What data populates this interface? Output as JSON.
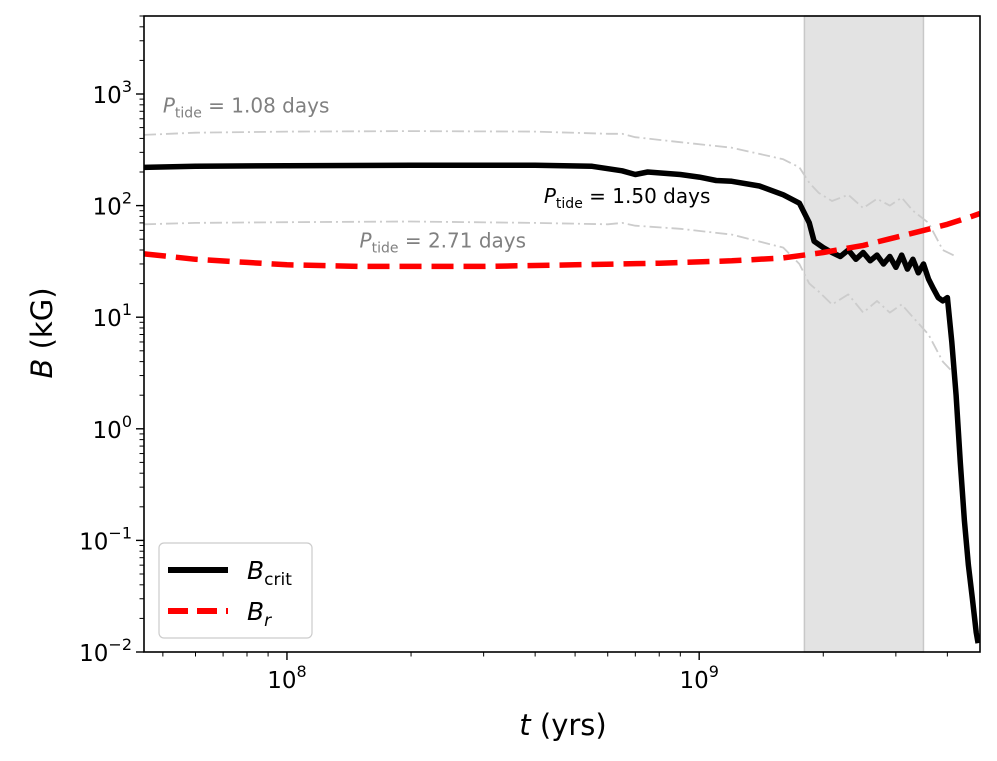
{
  "chart_data": {
    "type": "line",
    "xlabel_italic": "t",
    "xlabel_unit": " (yrs)",
    "ylabel_italic": "B",
    "ylabel_unit": " (kG)",
    "x_scale": "log",
    "y_scale": "log",
    "xlim": [
      45000000,
      4800000000
    ],
    "ylim": [
      0.01,
      5000
    ],
    "x_ticks": [
      {
        "value": 100000000,
        "base": "10",
        "exp": "8"
      },
      {
        "value": 1000000000,
        "base": "10",
        "exp": "9"
      }
    ],
    "y_ticks": [
      {
        "value": 0.01,
        "base": "10",
        "exp": "−2"
      },
      {
        "value": 0.1,
        "base": "10",
        "exp": "−1"
      },
      {
        "value": 1,
        "base": "10",
        "exp": "0"
      },
      {
        "value": 10,
        "base": "10",
        "exp": "1"
      },
      {
        "value": 100,
        "base": "10",
        "exp": "2"
      },
      {
        "value": 1000,
        "base": "10",
        "exp": "3"
      }
    ],
    "shaded_region": {
      "x": [
        1800000000,
        3500000000
      ],
      "color": "#e3e3e3"
    },
    "series": [
      {
        "key": "upper",
        "style": "dashdot",
        "color": "#cccccc",
        "x": [
          45000000,
          60000000,
          100000000,
          200000000,
          400000000,
          600000000,
          650000000,
          700000000,
          900000000,
          1200000000,
          1600000000,
          1750000000,
          1850000000,
          1950000000,
          2100000000,
          2300000000,
          2500000000,
          2700000000,
          2900000000,
          3100000000,
          3300000000,
          3600000000,
          3900000000,
          4200000000
        ],
        "y": [
          430,
          450,
          460,
          465,
          460,
          440,
          440,
          410,
          370,
          330,
          260,
          220,
          160,
          130,
          110,
          125,
          95,
          115,
          100,
          118,
          90,
          70,
          40,
          35
        ]
      },
      {
        "key": "lower",
        "style": "dashdot",
        "color": "#cccccc",
        "x": [
          45000000,
          60000000,
          100000000,
          200000000,
          400000000,
          600000000,
          650000000,
          700000000,
          900000000,
          1200000000,
          1600000000,
          1750000000,
          1850000000,
          1950000000,
          2100000000,
          2300000000,
          2500000000,
          2700000000,
          2900000000,
          3100000000,
          3300000000,
          3600000000,
          3900000000,
          4200000000
        ],
        "y": [
          68,
          70,
          71,
          72,
          70,
          68,
          70,
          66,
          62,
          55,
          42,
          30,
          20,
          17,
          13,
          16,
          11,
          14,
          11,
          13,
          10,
          7,
          4,
          3
        ]
      },
      {
        "key": "bcrit",
        "name": "B",
        "name_sub": "crit",
        "style": "solid",
        "color": "#000000",
        "x": [
          45000000,
          60000000,
          100000000,
          200000000,
          400000000,
          550000000,
          650000000,
          700000000,
          750000000,
          900000000,
          1000000000,
          1100000000,
          1200000000,
          1400000000,
          1600000000,
          1750000000,
          1850000000,
          1900000000,
          2000000000,
          2100000000,
          2200000000,
          2300000000,
          2400000000,
          2500000000,
          2600000000,
          2700000000,
          2800000000,
          2900000000,
          3000000000,
          3100000000,
          3200000000,
          3300000000,
          3400000000,
          3500000000,
          3600000000,
          3700000000,
          3800000000,
          3900000000,
          4000000000,
          4100000000,
          4200000000,
          4300000000,
          4400000000,
          4500000000,
          4600000000,
          4700000000,
          4750000000
        ],
        "y": [
          220,
          225,
          228,
          230,
          230,
          225,
          205,
          190,
          200,
          190,
          180,
          168,
          165,
          150,
          125,
          105,
          70,
          48,
          42,
          38,
          35,
          40,
          33,
          38,
          32,
          36,
          30,
          35,
          28,
          36,
          27,
          33,
          25,
          30,
          22,
          18,
          15,
          14,
          15,
          6,
          2,
          0.5,
          0.15,
          0.06,
          0.03,
          0.015,
          0.012
        ]
      },
      {
        "key": "br",
        "name": "B",
        "name_sub": "r",
        "style": "dashed",
        "color": "#ff0000",
        "x": [
          45000000,
          60000000,
          80000000,
          100000000,
          150000000,
          300000000,
          500000000,
          800000000,
          1200000000,
          1600000000,
          2000000000,
          2500000000,
          3000000000,
          3500000000,
          4000000000,
          4500000000,
          4800000000
        ],
        "y": [
          37,
          33,
          31,
          29.5,
          28.5,
          28.5,
          29.5,
          30.5,
          32,
          34,
          38,
          44,
          52,
          60,
          68,
          78,
          85
        ]
      }
    ],
    "annotations": [
      {
        "key": "a108",
        "label": "P",
        "sub": "tide",
        "rest": " = 1.08 days",
        "color": "#808080",
        "x": 50000000,
        "y": 680
      },
      {
        "key": "a150",
        "label": "P",
        "sub": "tide",
        "rest": " = 1.50 days",
        "color": "#000000",
        "x": 420000000,
        "y": 105
      },
      {
        "key": "a271",
        "label": "P",
        "sub": "tide",
        "rest": " = 2.71 days",
        "color": "#808080",
        "x": 150000000,
        "y": 42
      }
    ],
    "legend": {
      "placement": "lower-left"
    }
  }
}
